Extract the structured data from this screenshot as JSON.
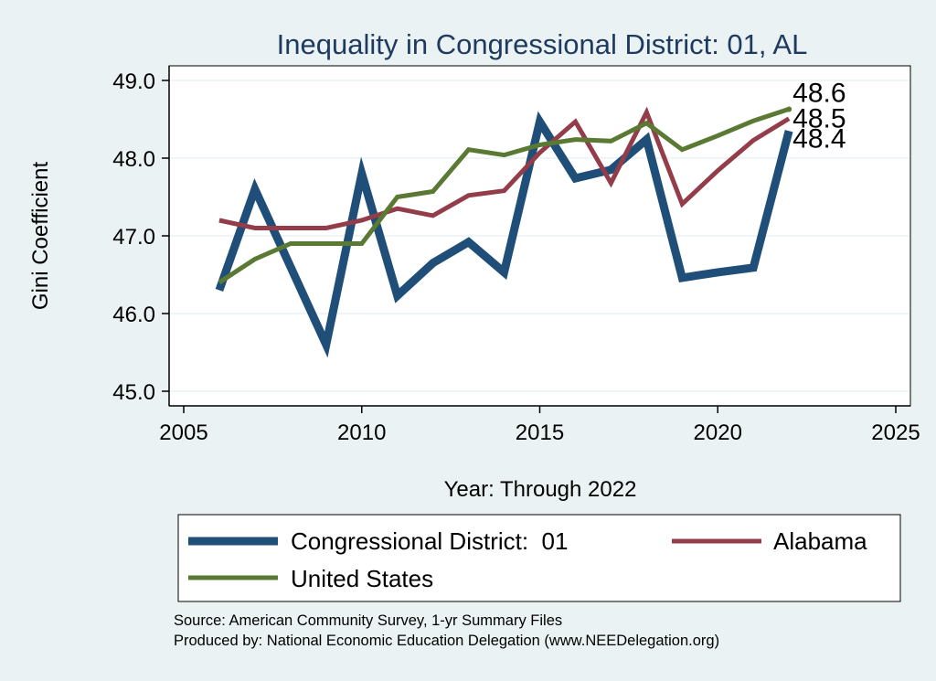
{
  "chart_data": {
    "type": "line",
    "title": "Inequality in Congressional District:  01, AL",
    "xlabel": "Year: Through 2022",
    "ylabel": "Gini Coefficient",
    "xlim": [
      2005,
      2025
    ],
    "ylim": [
      45.0,
      49.0
    ],
    "xticks": [
      2005,
      2010,
      2015,
      2020,
      2025
    ],
    "xtick_labels": [
      "2005",
      "2010",
      "2015",
      "2020",
      "2025"
    ],
    "yticks": [
      45,
      46,
      47,
      48,
      49
    ],
    "ytick_labels": [
      "45.0",
      "46.0",
      "47.0",
      "48.0",
      "49.0"
    ],
    "grid": true,
    "legend_position": "bottom",
    "series": [
      {
        "name": "Congressional District:  01",
        "color": "#1f4e79",
        "x": [
          2006,
          2007,
          2008,
          2009,
          2010,
          2011,
          2012,
          2013,
          2014,
          2015,
          2016,
          2017,
          2018,
          2019,
          2020,
          2021,
          2022
        ],
        "values": [
          46.3,
          47.6,
          46.6,
          45.6,
          47.8,
          46.23,
          46.65,
          46.92,
          46.53,
          48.47,
          47.74,
          47.85,
          48.24,
          46.46,
          46.53,
          46.59,
          48.35
        ],
        "end_label": "48.4"
      },
      {
        "name": "Alabama",
        "color": "#943d4a",
        "x": [
          2006,
          2007,
          2008,
          2009,
          2010,
          2011,
          2012,
          2013,
          2014,
          2015,
          2016,
          2017,
          2018,
          2019,
          2020,
          2021,
          2022
        ],
        "values": [
          47.2,
          47.1,
          47.1,
          47.1,
          47.2,
          47.35,
          47.26,
          47.52,
          47.58,
          48.07,
          48.47,
          47.68,
          48.59,
          47.41,
          47.84,
          48.23,
          48.51
        ],
        "end_label": "48.5"
      },
      {
        "name": "United States",
        "color": "#5a7a33",
        "x": [
          2006,
          2007,
          2008,
          2009,
          2010,
          2011,
          2012,
          2013,
          2014,
          2015,
          2016,
          2017,
          2018,
          2019,
          2020,
          2021,
          2022
        ],
        "values": [
          46.4,
          46.7,
          46.9,
          46.9,
          46.9,
          47.5,
          47.57,
          48.11,
          48.04,
          48.17,
          48.24,
          48.22,
          48.45,
          48.11,
          48.29,
          48.48,
          48.63
        ],
        "end_label": "48.6"
      }
    ]
  },
  "source_lines": [
    "Source: American Community Survey, 1-yr Summary Files",
    "Produced by: National Economic Education Delegation (www.NEEDelegation.org)"
  ]
}
